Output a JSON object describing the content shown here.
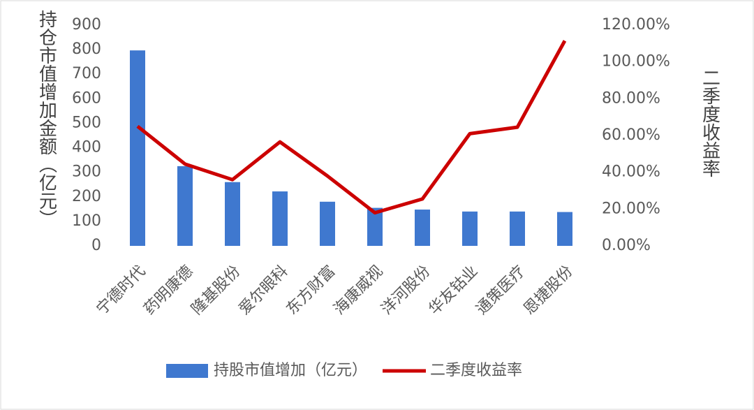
{
  "chart_data": {
    "type": "bar",
    "ylabel": "持仓市值增加金额（亿元）",
    "y2label": "二季度收益率",
    "categories": [
      "宁德时代",
      "药明康德",
      "隆基股份",
      "爱尔眼科",
      "东方财富",
      "海康威视",
      "洋河股份",
      "华友钴业",
      "通策医疗",
      "恩捷股份"
    ],
    "series": [
      {
        "name": "持股市值增加（亿元）",
        "type": "bar",
        "color": "#3f78cf",
        "values": [
          797,
          325,
          260,
          222,
          180,
          155,
          148,
          140,
          140,
          138
        ]
      },
      {
        "name": "二季度收益率",
        "type": "line",
        "axis": "y2",
        "color": "#cc0000",
        "values": [
          65,
          44.5,
          36,
          56.5,
          38,
          18,
          25.5,
          61,
          64.5,
          111.5
        ]
      }
    ],
    "ylim": [
      0,
      900
    ],
    "yticks": [
      0,
      100,
      200,
      300,
      400,
      500,
      600,
      700,
      800,
      900
    ],
    "y2lim": [
      0,
      120
    ],
    "y2ticks": [
      {
        "value": 0,
        "label": "0.00%"
      },
      {
        "value": 20,
        "label": "20.00%"
      },
      {
        "value": 40,
        "label": "40.00%"
      },
      {
        "value": 60,
        "label": "60.00%"
      },
      {
        "value": 80,
        "label": "80.00%"
      },
      {
        "value": 100,
        "label": "100.00%"
      },
      {
        "value": 120,
        "label": "120.00%"
      }
    ],
    "legend": "bottom"
  }
}
